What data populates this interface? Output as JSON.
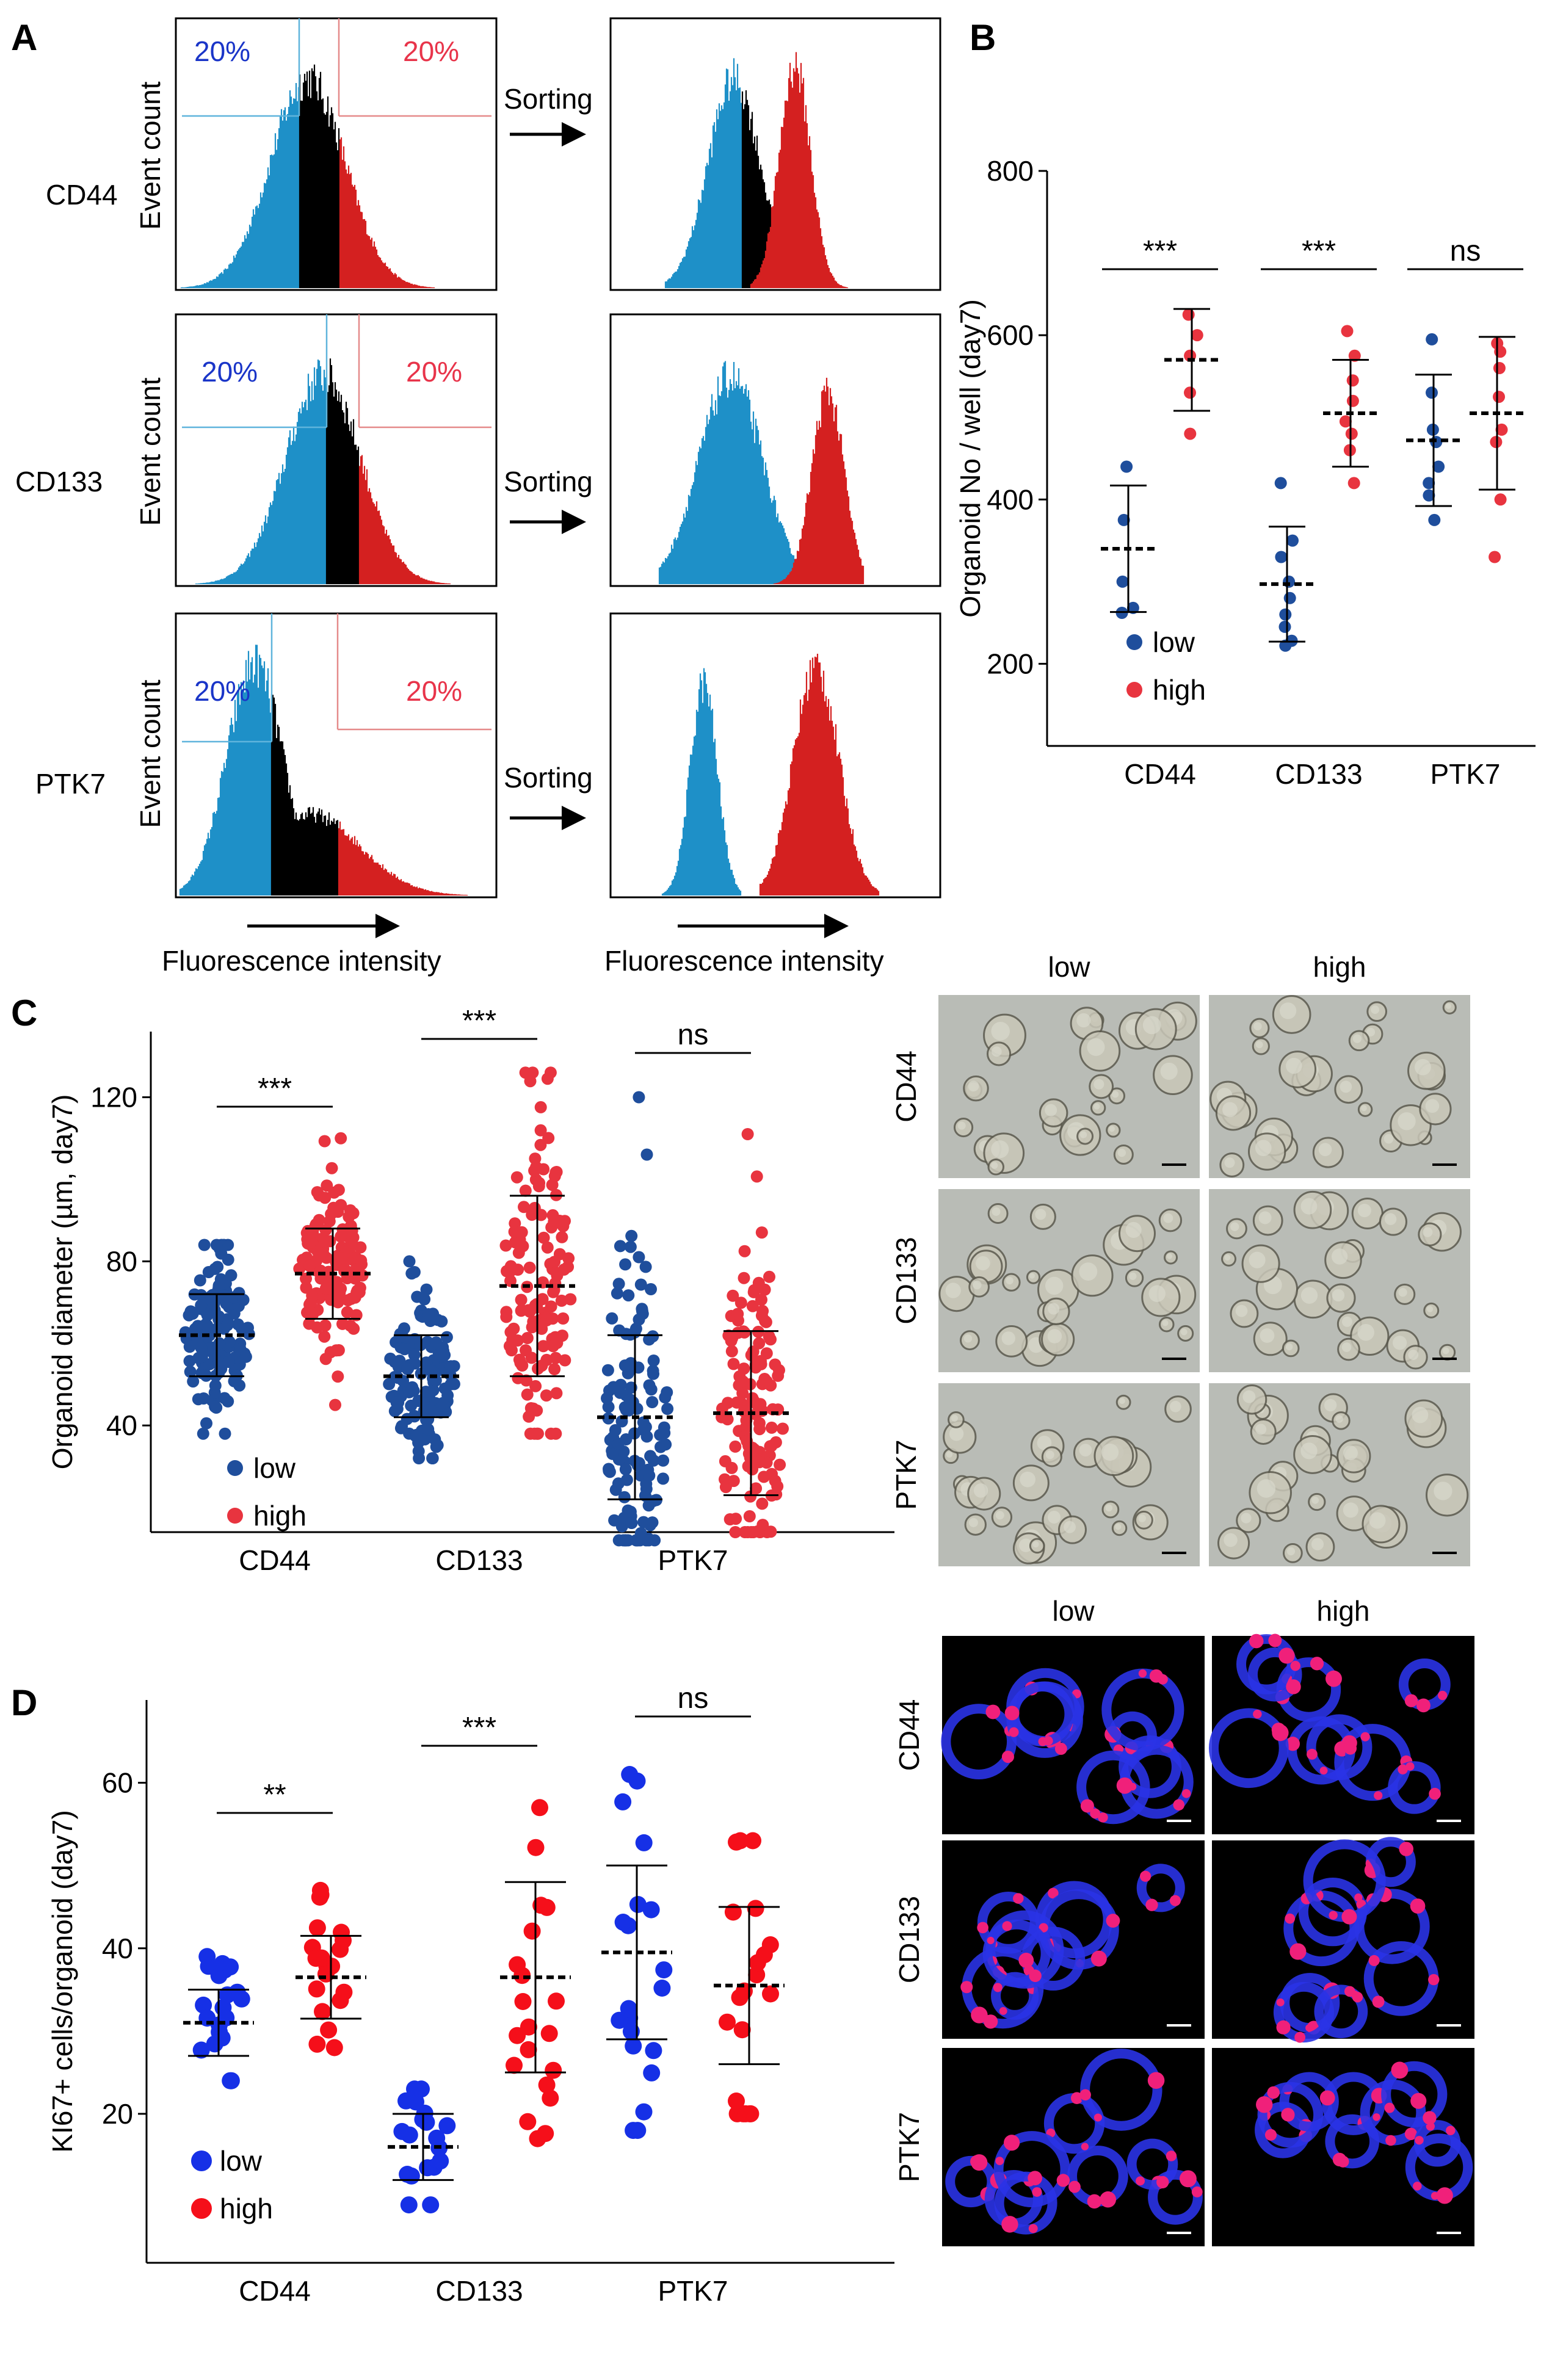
{
  "colors": {
    "low": "#1f4e9c",
    "high": "#e8343f",
    "lowBright": "#1630e6",
    "highBright": "#f50f1a",
    "histBlue": "#1e90c8",
    "histRed": "#d42020"
  },
  "panelA": {
    "letter": "A",
    "pct_low": "20%",
    "pct_high": "20%",
    "ylabel": "Event count",
    "xlabel": "Fluorescence intensity",
    "sorting": "Sorting",
    "markers": [
      "CD44",
      "CD133",
      "PTK7"
    ]
  },
  "panelB": {
    "letter": "B",
    "ylabel": "Organoid No / well (day7)",
    "legend": {
      "low": "low",
      "high": "high"
    },
    "chart_data": {
      "type": "scatter",
      "categories": [
        "CD44",
        "CD133",
        "PTK7"
      ],
      "ylim": [
        100,
        800
      ],
      "yticks": [
        "200",
        "400",
        "600",
        "800"
      ],
      "ytick_values": [
        200,
        400,
        600,
        800
      ],
      "series": [
        {
          "name": "low",
          "mean": [
            340,
            297,
            472
          ],
          "sd": [
            77,
            70,
            80
          ],
          "points": [
            [
              440,
              375,
              300,
              268,
              262
            ],
            [
              420,
              350,
              330,
              300,
              280,
              260,
              245,
              228,
              222
            ],
            [
              595,
              530,
              485,
              470,
              440,
              420,
              405,
              375
            ]
          ]
        },
        {
          "name": "high",
          "mean": [
            570,
            505,
            505
          ],
          "sd": [
            62,
            65,
            93
          ],
          "points": [
            [
              625,
              600,
              575,
              530,
              480
            ],
            [
              605,
              575,
              545,
              520,
              495,
              480,
              460,
              420
            ],
            [
              590,
              580,
              560,
              525,
              485,
              470,
              400,
              330
            ]
          ]
        }
      ],
      "significance": [
        "***",
        "***",
        "ns"
      ]
    }
  },
  "panelC": {
    "letter": "C",
    "ylabel": "Organoid diameter (µm, day7)",
    "legend": {
      "low": "low",
      "high": "high"
    },
    "images": {
      "col_low": "low",
      "col_high": "high",
      "rows": [
        "CD44",
        "CD133",
        "PTK7"
      ]
    },
    "chart_data": {
      "type": "scatter",
      "categories": [
        "CD44",
        "CD133",
        "PTK7"
      ],
      "ylim": [
        14,
        136
      ],
      "yticks": [
        "40",
        "80",
        "120"
      ],
      "ytick_values": [
        40,
        80,
        120
      ],
      "series": [
        {
          "name": "low",
          "mean": [
            62,
            52,
            42
          ],
          "sd": [
            10,
            10,
            20
          ],
          "range": [
            [
              38,
              84
            ],
            [
              32,
              80
            ],
            [
              12,
              120
            ]
          ],
          "n": 130
        },
        {
          "name": "high",
          "mean": [
            77,
            74,
            43
          ],
          "sd": [
            11,
            22,
            20
          ],
          "range": [
            [
              45,
              110
            ],
            [
              38,
              126
            ],
            [
              14,
              111
            ]
          ],
          "n": 130
        }
      ],
      "significance": [
        "***",
        "***",
        "ns"
      ]
    }
  },
  "panelD": {
    "letter": "D",
    "ylabel": "KI67+ cells/organoid (day7)",
    "legend": {
      "low": "low",
      "high": "high"
    },
    "images": {
      "col_low": "low",
      "col_high": "high",
      "rows": [
        "CD44",
        "CD133",
        "PTK7"
      ]
    },
    "chart_data": {
      "type": "scatter",
      "categories": [
        "CD44",
        "CD133",
        "PTK7"
      ],
      "ylim": [
        2,
        70
      ],
      "yticks": [
        "20",
        "40",
        "60"
      ],
      "ytick_values": [
        20,
        40,
        60
      ],
      "series": [
        {
          "name": "low",
          "mean": [
            31,
            16,
            39.5
          ],
          "sd": [
            4,
            4,
            10.5
          ],
          "range": [
            [
              24,
              39
            ],
            [
              9,
              23
            ],
            [
              18,
              61
            ]
          ],
          "n": 20
        },
        {
          "name": "high",
          "mean": [
            36.5,
            36.5,
            35.5
          ],
          "sd": [
            5,
            11.5,
            9.5
          ],
          "range": [
            [
              28,
              47
            ],
            [
              17,
              57
            ],
            [
              20,
              53
            ]
          ],
          "n": 20
        }
      ],
      "significance": [
        "**",
        "***",
        "ns"
      ]
    }
  }
}
